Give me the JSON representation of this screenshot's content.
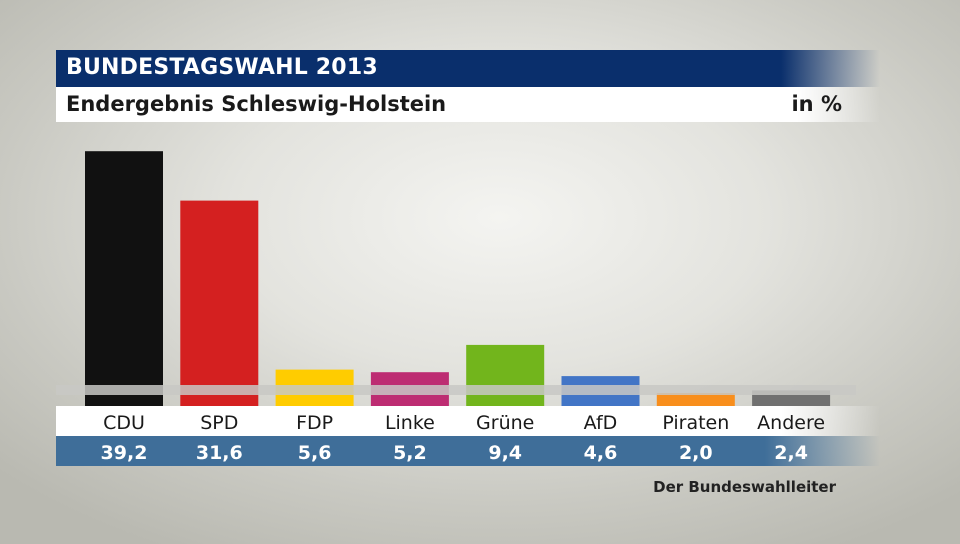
{
  "header": {
    "title": "BUNDESTAGSWAHL 2013",
    "subtitle": "Endergebnis Schleswig-Holstein",
    "unit": "in %"
  },
  "source": "Der Bundeswahlleiter",
  "colors": {
    "title_bg": "#0a2f6c",
    "value_band": "#3f6e99"
  },
  "chart_data": {
    "type": "bar",
    "title": "BUNDESTAGSWAHL 2013",
    "subtitle": "Endergebnis Schleswig-Holstein",
    "unit": "in %",
    "categories": [
      "CDU",
      "SPD",
      "FDP",
      "Linke",
      "Grüne",
      "AfD",
      "Piraten",
      "Andere"
    ],
    "values": [
      39.2,
      31.6,
      5.6,
      5.2,
      9.4,
      4.6,
      2.0,
      2.4
    ],
    "value_labels": [
      "39,2",
      "31,6",
      "5,6",
      "5,2",
      "9,4",
      "4,6",
      "2,0",
      "2,4"
    ],
    "colors": [
      "#111111",
      "#d42020",
      "#ffcc00",
      "#bd2c72",
      "#72b51c",
      "#4275c6",
      "#f88e1c",
      "#707070"
    ],
    "grid": false
  }
}
